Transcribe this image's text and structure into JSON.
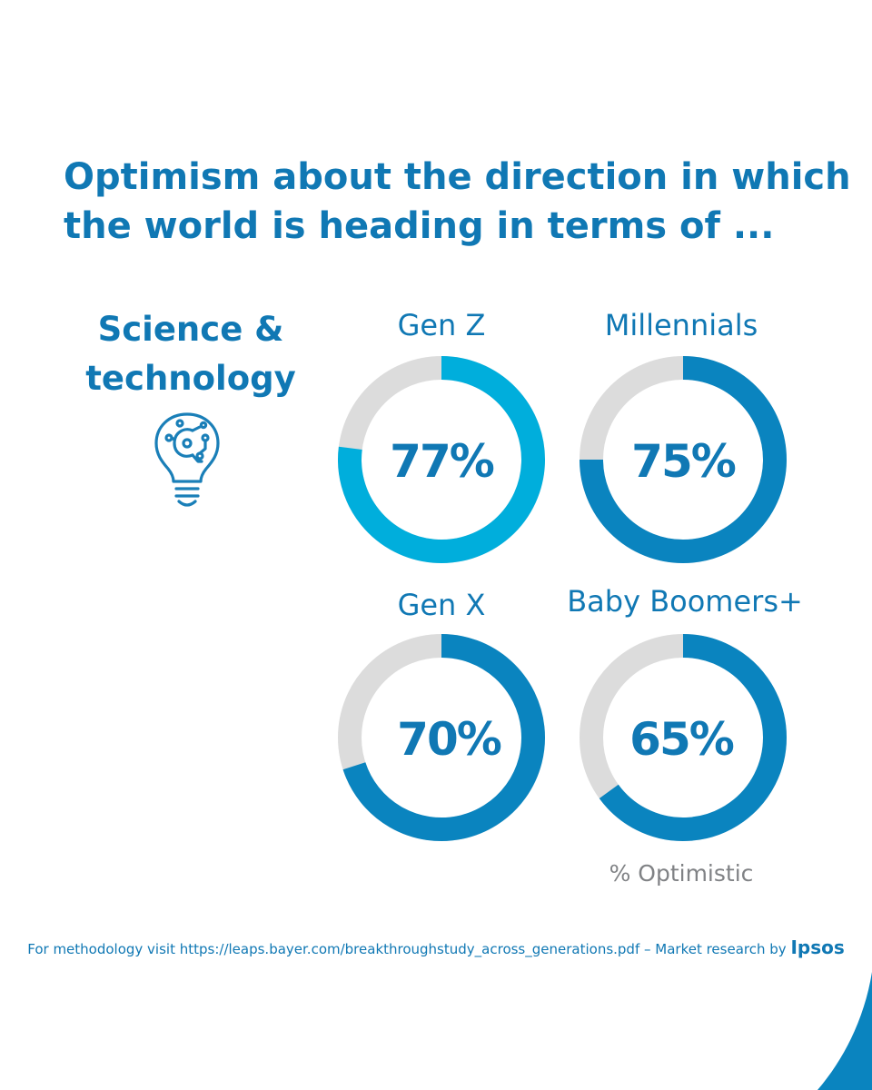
{
  "title": {
    "line1": "Optimism about the direction in which",
    "line2": "the world is heading in terms of ..."
  },
  "topic": {
    "line1": "Science &",
    "line2": "technology",
    "icon": "lightbulb-circuit-icon"
  },
  "chart_data": {
    "type": "donut",
    "unit_label": "% Optimistic",
    "series": [
      {
        "name": "Gen Z",
        "value": 77,
        "label": "77%",
        "color": "#00aedc"
      },
      {
        "name": "Millennials",
        "value": 75,
        "label": "75%",
        "color": "#0a84bf"
      },
      {
        "name": "Gen X",
        "value": 70,
        "label": "70%",
        "color": "#0a84bf"
      },
      {
        "name": "Baby Boomers+",
        "value": 65,
        "label": "65%",
        "color": "#0a84bf"
      }
    ],
    "remainder_color": "#dcdcdc"
  },
  "footer": {
    "text": "For methodology visit https://leaps.bayer.com/breakthroughstudy_across_generations.pdf – Market research by",
    "brand": "Ipsos"
  },
  "colors": {
    "primary": "#1078b4",
    "accent_light": "#00aedc",
    "muted_text": "#808285"
  }
}
